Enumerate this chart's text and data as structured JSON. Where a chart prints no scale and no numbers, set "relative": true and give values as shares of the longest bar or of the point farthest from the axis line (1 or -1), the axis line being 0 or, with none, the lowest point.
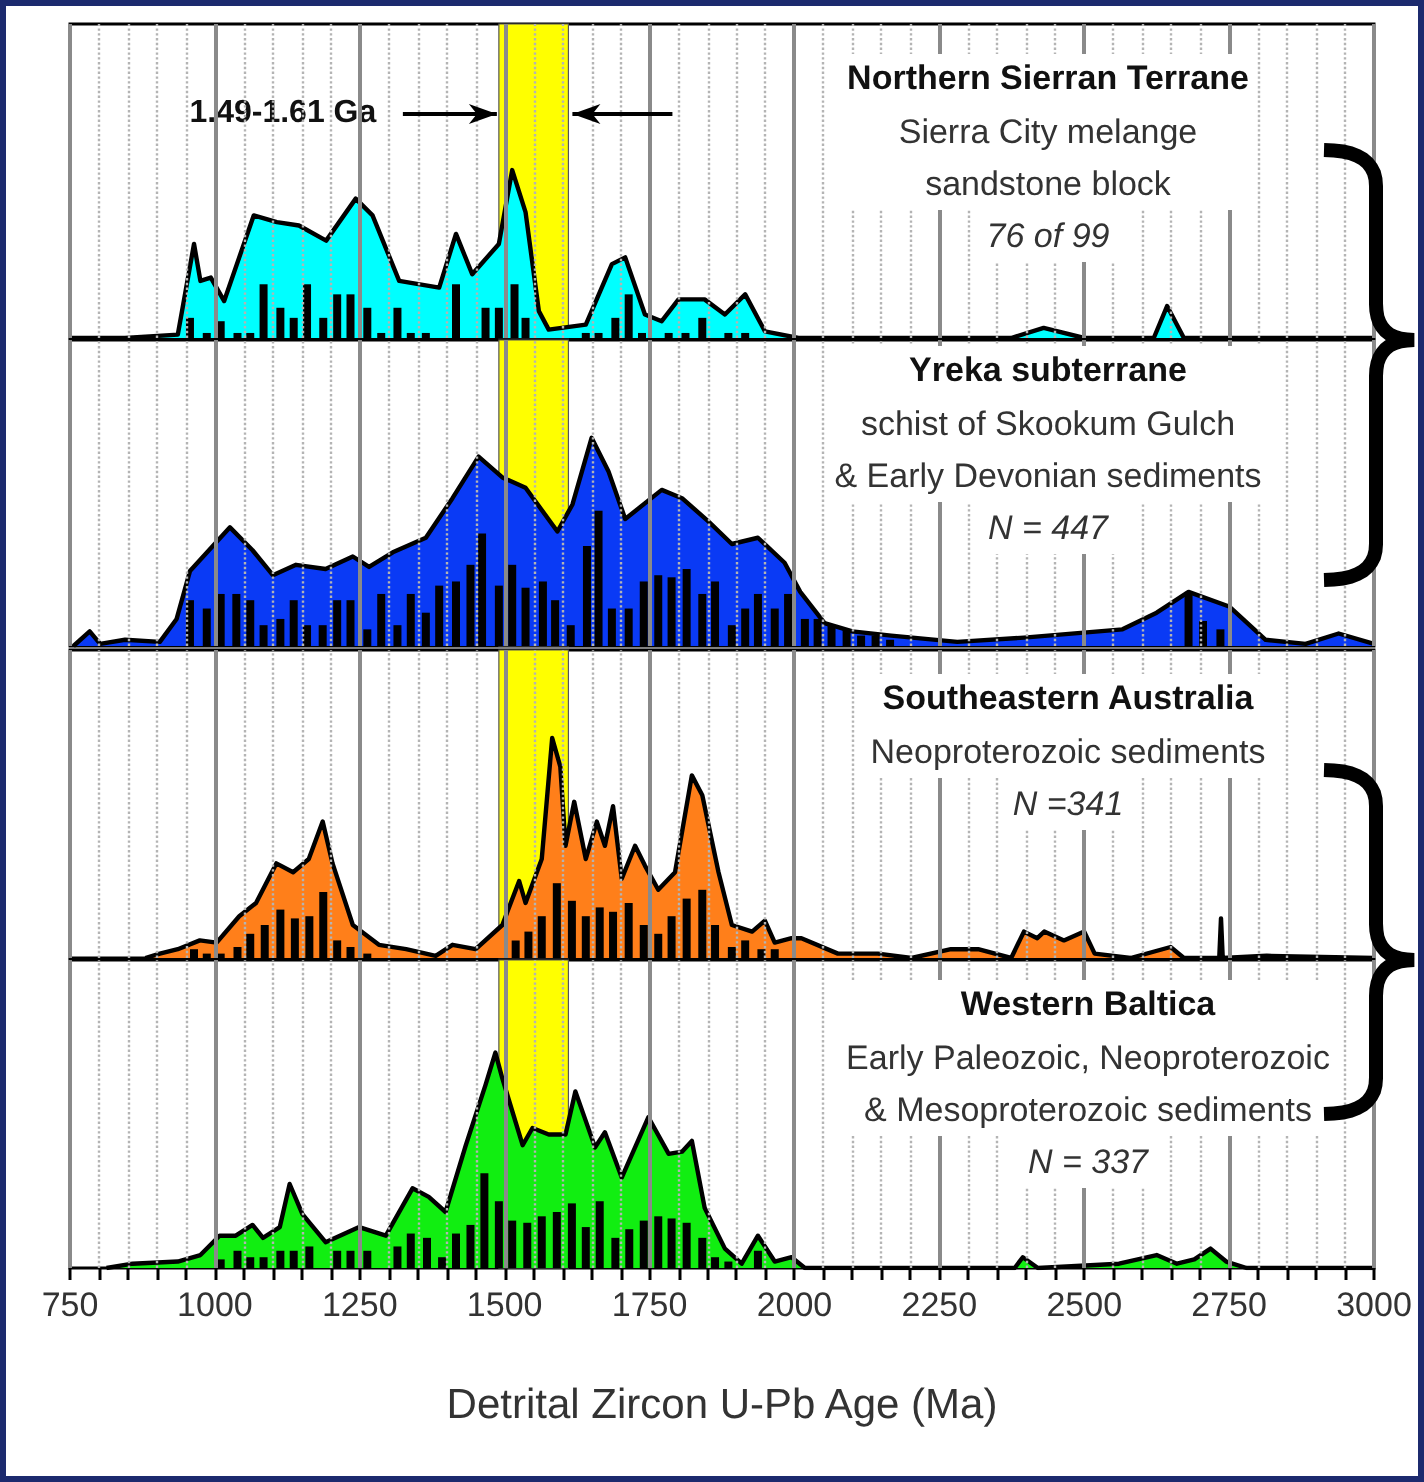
{
  "chart_data": [
    {
      "type": "area",
      "title": "Northern Sierran Terrane",
      "subtitle": "Sierra City melange\nsandstone block",
      "annotations": [
        "76 of 99"
      ],
      "relative": true,
      "grid": "x",
      "marker": "none",
      "tick_labels": false,
      "xlim": [
        750,
        3000
      ],
      "xticks": [
        750,
        {
          "value": 800,
          "label": null
        },
        {
          "value": 850,
          "label": null
        },
        {
          "value": 900,
          "label": null
        },
        {
          "value": 950,
          "label": null
        },
        1000,
        {
          "value": 1050,
          "label": null
        },
        {
          "value": 1100,
          "label": null
        },
        {
          "value": 1150,
          "label": null
        },
        {
          "value": 1200,
          "label": null
        },
        1250,
        {
          "value": 1300,
          "label": null
        },
        {
          "value": 1350,
          "label": null
        },
        {
          "value": 1400,
          "label": null
        },
        {
          "value": 1450,
          "label": null
        },
        1500,
        {
          "value": 1550,
          "label": null
        },
        {
          "value": 1600,
          "label": null
        },
        {
          "value": 1650,
          "label": null
        },
        {
          "value": 1700,
          "label": null
        },
        1750,
        {
          "value": 1800,
          "label": null
        },
        {
          "value": 1850,
          "label": null
        },
        {
          "value": 1900,
          "label": null
        },
        {
          "value": 1950,
          "label": null
        },
        2000,
        {
          "value": 2050,
          "label": null
        },
        {
          "value": 2100,
          "label": null
        },
        {
          "value": 2150,
          "label": null
        },
        {
          "value": 2200,
          "label": null
        },
        2250,
        {
          "value": 2300,
          "label": null
        },
        {
          "value": 2350,
          "label": null
        },
        {
          "value": 2400,
          "label": null
        },
        {
          "value": 2450,
          "label": null
        },
        2500,
        {
          "value": 2550,
          "label": null
        },
        {
          "value": 2600,
          "label": null
        },
        {
          "value": 2650,
          "label": null
        },
        {
          "value": 2700,
          "label": null
        },
        2750,
        {
          "value": 2800,
          "label": null
        },
        {
          "value": 2850,
          "label": null
        },
        {
          "value": 2900,
          "label": null
        },
        {
          "value": 2950,
          "label": null
        },
        3000
      ],
      "bands": [
        {
          "axis": "x",
          "from": 1490,
          "to": 1610,
          "label": "1.49-1.61 Ga",
          "color": "#ffff00"
        }
      ],
      "series": [
        {
          "color": "#00ffff",
          "x": [
            750,
            845,
            936,
            964,
            975,
            993,
            1016,
            1067,
            1107,
            1145,
            1192,
            1243,
            1272,
            1318,
            1387,
            1416,
            1444,
            1490,
            1513,
            1536,
            1559,
            1576,
            1640,
            1685,
            1708,
            1742,
            1771,
            1800,
            1845,
            1880,
            1915,
            1949,
            2007,
            2374,
            2430,
            2500,
            2620,
            2643,
            2672,
            3000
          ],
          "values": [
            0,
            0,
            0.02,
            0.56,
            0.34,
            0.36,
            0.22,
            0.73,
            0.69,
            0.67,
            0.58,
            0.83,
            0.73,
            0.34,
            0.3,
            0.62,
            0.38,
            0.56,
            1,
            0.75,
            0.16,
            0.05,
            0.08,
            0.44,
            0.48,
            0.14,
            0.1,
            0.23,
            0.23,
            0.14,
            0.26,
            0.04,
            0,
            0,
            0.06,
            0,
            0,
            0.19,
            0,
            0
          ]
        },
        {
          "type": "bar",
          "color": "#000000",
          "x": [
            957,
            986,
            1010,
            1039,
            1061,
            1084,
            1113,
            1136,
            1159,
            1187,
            1211,
            1234,
            1263,
            1287,
            1315,
            1338,
            1364,
            1416,
            1467,
            1490,
            1517,
            1536,
            1640,
            1662,
            1691,
            1714,
            1737,
            1783,
            1812,
            1841,
            1886,
            1915
          ],
          "values": [
            0.12,
            0.03,
            0.1,
            0.03,
            0.03,
            0.32,
            0.18,
            0.12,
            0.32,
            0.12,
            0.26,
            0.26,
            0.18,
            0.03,
            0.18,
            0.03,
            0.03,
            0.32,
            0.18,
            0.18,
            0.32,
            0.12,
            0.03,
            0.03,
            0.12,
            0.26,
            0.03,
            0.03,
            0.03,
            0.12,
            0.03,
            0.03
          ]
        }
      ]
    },
    {
      "type": "area",
      "title": "Yreka subterrane",
      "subtitle": "schist of Skookum Gulch\n& Early Devonian sediments",
      "annotations": [
        "N = 447"
      ],
      "relative": true,
      "grid": "x",
      "marker": "none",
      "tick_labels": false,
      "xlim": [
        750,
        3000
      ],
      "xticks": [
        750,
        {
          "value": 800,
          "label": null
        },
        {
          "value": 850,
          "label": null
        },
        {
          "value": 900,
          "label": null
        },
        {
          "value": 950,
          "label": null
        },
        1000,
        {
          "value": 1050,
          "label": null
        },
        {
          "value": 1100,
          "label": null
        },
        {
          "value": 1150,
          "label": null
        },
        {
          "value": 1200,
          "label": null
        },
        1250,
        {
          "value": 1300,
          "label": null
        },
        {
          "value": 1350,
          "label": null
        },
        {
          "value": 1400,
          "label": null
        },
        {
          "value": 1450,
          "label": null
        },
        1500,
        {
          "value": 1550,
          "label": null
        },
        {
          "value": 1600,
          "label": null
        },
        {
          "value": 1650,
          "label": null
        },
        {
          "value": 1700,
          "label": null
        },
        1750,
        {
          "value": 1800,
          "label": null
        },
        {
          "value": 1850,
          "label": null
        },
        {
          "value": 1900,
          "label": null
        },
        {
          "value": 1950,
          "label": null
        },
        2000,
        {
          "value": 2050,
          "label": null
        },
        {
          "value": 2100,
          "label": null
        },
        {
          "value": 2150,
          "label": null
        },
        {
          "value": 2200,
          "label": null
        },
        2250,
        {
          "value": 2300,
          "label": null
        },
        {
          "value": 2350,
          "label": null
        },
        {
          "value": 2400,
          "label": null
        },
        {
          "value": 2450,
          "label": null
        },
        2500,
        {
          "value": 2550,
          "label": null
        },
        {
          "value": 2600,
          "label": null
        },
        {
          "value": 2650,
          "label": null
        },
        {
          "value": 2700,
          "label": null
        },
        2750,
        {
          "value": 2800,
          "label": null
        },
        {
          "value": 2850,
          "label": null
        },
        {
          "value": 2900,
          "label": null
        },
        {
          "value": 2950,
          "label": null
        },
        3000
      ],
      "bands": [
        {
          "axis": "x",
          "from": 1490,
          "to": 1610,
          "color": "#ffff00"
        }
      ],
      "series": [
        {
          "color": "#0a3af5",
          "x": [
            756,
            784,
            802,
            845,
            905,
            934,
            957,
            1026,
            1065,
            1100,
            1140,
            1191,
            1238,
            1266,
            1307,
            1364,
            1410,
            1455,
            1496,
            1536,
            1591,
            1617,
            1650,
            1679,
            1708,
            1771,
            1806,
            1851,
            1892,
            1937,
            1983,
            2010,
            2052,
            2100,
            2167,
            2281,
            2396,
            2566,
            2625,
            2680,
            2750,
            2813,
            2882,
            2939,
            3000
          ],
          "values": [
            0,
            0.07,
            0.01,
            0.03,
            0.02,
            0.13,
            0.36,
            0.57,
            0.46,
            0.34,
            0.39,
            0.37,
            0.43,
            0.38,
            0.45,
            0.52,
            0.71,
            0.91,
            0.81,
            0.76,
            0.55,
            0.68,
            1,
            0.84,
            0.61,
            0.75,
            0.71,
            0.6,
            0.49,
            0.52,
            0.4,
            0.26,
            0.11,
            0.07,
            0.05,
            0.02,
            0.04,
            0.08,
            0.16,
            0.26,
            0.19,
            0.03,
            0.01,
            0.06,
            0.01
          ]
        },
        {
          "type": "bar",
          "color": "#000000",
          "x": [
            957,
            986,
            1010,
            1037,
            1061,
            1084,
            1113,
            1136,
            1159,
            1186,
            1211,
            1234,
            1263,
            1287,
            1315,
            1338,
            1364,
            1387,
            1416,
            1441,
            1461,
            1490,
            1513,
            1536,
            1566,
            1587,
            1614,
            1642,
            1662,
            1685,
            1714,
            1740,
            1765,
            1788,
            1814,
            1841,
            1863,
            1892,
            1915,
            1937,
            1966,
            1989,
            2018,
            2040,
            2064,
            2090,
            2115,
            2140,
            2165,
            2680,
            2705,
            2735
          ],
          "values": [
            0.22,
            0.18,
            0.25,
            0.25,
            0.22,
            0.1,
            0.13,
            0.22,
            0.1,
            0.1,
            0.22,
            0.22,
            0.08,
            0.25,
            0.1,
            0.25,
            0.16,
            0.29,
            0.31,
            0.39,
            0.54,
            0.29,
            0.39,
            0.28,
            0.31,
            0.22,
            0.1,
            0.48,
            0.65,
            0.18,
            0.18,
            0.31,
            0.34,
            0.33,
            0.37,
            0.25,
            0.31,
            0.1,
            0.18,
            0.25,
            0.18,
            0.25,
            0.13,
            0.13,
            0.1,
            0.08,
            0.05,
            0.05,
            0.03,
            0.26,
            0.12,
            0.08
          ]
        }
      ]
    },
    {
      "type": "area",
      "title": "Southeastern Australia",
      "subtitle": "Neoproterozoic sediments",
      "annotations": [
        "N =341"
      ],
      "relative": true,
      "grid": "x",
      "marker": "none",
      "tick_labels": false,
      "xlim": [
        750,
        3000
      ],
      "xticks": [
        750,
        {
          "value": 800,
          "label": null
        },
        {
          "value": 850,
          "label": null
        },
        {
          "value": 900,
          "label": null
        },
        {
          "value": 950,
          "label": null
        },
        1000,
        {
          "value": 1050,
          "label": null
        },
        {
          "value": 1100,
          "label": null
        },
        {
          "value": 1150,
          "label": null
        },
        {
          "value": 1200,
          "label": null
        },
        1250,
        {
          "value": 1300,
          "label": null
        },
        {
          "value": 1350,
          "label": null
        },
        {
          "value": 1400,
          "label": null
        },
        {
          "value": 1450,
          "label": null
        },
        1500,
        {
          "value": 1550,
          "label": null
        },
        {
          "value": 1600,
          "label": null
        },
        {
          "value": 1650,
          "label": null
        },
        {
          "value": 1700,
          "label": null
        },
        1750,
        {
          "value": 1800,
          "label": null
        },
        {
          "value": 1850,
          "label": null
        },
        {
          "value": 1900,
          "label": null
        },
        {
          "value": 1950,
          "label": null
        },
        2000,
        {
          "value": 2050,
          "label": null
        },
        {
          "value": 2100,
          "label": null
        },
        {
          "value": 2150,
          "label": null
        },
        {
          "value": 2200,
          "label": null
        },
        2250,
        {
          "value": 2300,
          "label": null
        },
        {
          "value": 2350,
          "label": null
        },
        {
          "value": 2400,
          "label": null
        },
        {
          "value": 2450,
          "label": null
        },
        2500,
        {
          "value": 2550,
          "label": null
        },
        {
          "value": 2600,
          "label": null
        },
        {
          "value": 2650,
          "label": null
        },
        {
          "value": 2700,
          "label": null
        },
        2750,
        {
          "value": 2800,
          "label": null
        },
        {
          "value": 2850,
          "label": null
        },
        {
          "value": 2900,
          "label": null
        },
        {
          "value": 2950,
          "label": null
        },
        3000
      ],
      "bands": [
        {
          "axis": "x",
          "from": 1490,
          "to": 1610,
          "color": "#ffff00"
        }
      ],
      "series": [
        {
          "color": "#ff7f1a",
          "x": [
            880,
            905,
            936,
            974,
            1003,
            1042,
            1071,
            1106,
            1135,
            1162,
            1186,
            1203,
            1238,
            1283,
            1330,
            1381,
            1410,
            1450,
            1496,
            1525,
            1536,
            1564,
            1582,
            1596,
            1605,
            1620,
            1640,
            1659,
            1673,
            1687,
            1702,
            1725,
            1742,
            1765,
            1794,
            1823,
            1841,
            1869,
            1892,
            1927,
            1949,
            1966,
            1995,
            2012,
            2075,
            2144,
            2202,
            2270,
            2317,
            2374,
            2396,
            2419,
            2431,
            2465,
            2500,
            2518,
            2580,
            2649,
            2672,
            2733,
            2736,
            2739,
            2815,
            3000
          ],
          "values": [
            0,
            0.02,
            0.04,
            0.08,
            0.07,
            0.19,
            0.25,
            0.43,
            0.39,
            0.45,
            0.62,
            0.43,
            0.15,
            0.06,
            0.04,
            0.01,
            0.06,
            0.04,
            0.15,
            0.35,
            0.25,
            0.45,
            1,
            0.87,
            0.51,
            0.71,
            0.45,
            0.62,
            0.51,
            0.69,
            0.36,
            0.51,
            0.42,
            0.31,
            0.39,
            0.83,
            0.74,
            0.39,
            0.15,
            0.12,
            0.17,
            0.07,
            0.09,
            0.09,
            0.02,
            0.02,
            0,
            0.04,
            0.04,
            0,
            0.12,
            0.09,
            0.12,
            0.08,
            0.12,
            0.02,
            0,
            0.05,
            0,
            0,
            0.18,
            0,
            0.01,
            0
          ]
        },
        {
          "type": "bar",
          "color": "#000000",
          "x": [
            964,
            986,
            1010,
            1039,
            1061,
            1086,
            1113,
            1138,
            1163,
            1187,
            1211,
            1234,
            1263,
            1519,
            1541,
            1564,
            1590,
            1616,
            1640,
            1664,
            1687,
            1714,
            1740,
            1765,
            1788,
            1814,
            1841,
            1863,
            1892,
            1915,
            1943,
            1966
          ],
          "values": [
            0.04,
            0.02,
            0.02,
            0.05,
            0.11,
            0.15,
            0.22,
            0.18,
            0.19,
            0.3,
            0.08,
            0.05,
            0.02,
            0.08,
            0.12,
            0.19,
            0.34,
            0.26,
            0.19,
            0.23,
            0.21,
            0.25,
            0.15,
            0.11,
            0.19,
            0.27,
            0.31,
            0.15,
            0.05,
            0.08,
            0.04,
            0.04
          ]
        }
      ]
    },
    {
      "type": "area",
      "title": "Western Baltica",
      "subtitle": "Early Paleozoic, Neoproterozoic\n& Mesoproterozoic sediments",
      "annotations": [
        "N = 337"
      ],
      "xlabel": "Detrital Zircon U-Pb Age (Ma)",
      "relative": true,
      "grid": "x",
      "marker": "none",
      "tick_labels": "x",
      "xlim": [
        750,
        3000
      ],
      "xticks": [
        750,
        {
          "value": 800,
          "label": null
        },
        {
          "value": 850,
          "label": null
        },
        {
          "value": 900,
          "label": null
        },
        {
          "value": 950,
          "label": null
        },
        1000,
        {
          "value": 1050,
          "label": null
        },
        {
          "value": 1100,
          "label": null
        },
        {
          "value": 1150,
          "label": null
        },
        {
          "value": 1200,
          "label": null
        },
        1250,
        {
          "value": 1300,
          "label": null
        },
        {
          "value": 1350,
          "label": null
        },
        {
          "value": 1400,
          "label": null
        },
        {
          "value": 1450,
          "label": null
        },
        1500,
        {
          "value": 1550,
          "label": null
        },
        {
          "value": 1600,
          "label": null
        },
        {
          "value": 1650,
          "label": null
        },
        {
          "value": 1700,
          "label": null
        },
        1750,
        {
          "value": 1800,
          "label": null
        },
        {
          "value": 1850,
          "label": null
        },
        {
          "value": 1900,
          "label": null
        },
        {
          "value": 1950,
          "label": null
        },
        2000,
        {
          "value": 2050,
          "label": null
        },
        {
          "value": 2100,
          "label": null
        },
        {
          "value": 2150,
          "label": null
        },
        {
          "value": 2200,
          "label": null
        },
        2250,
        {
          "value": 2300,
          "label": null
        },
        {
          "value": 2350,
          "label": null
        },
        {
          "value": 2400,
          "label": null
        },
        {
          "value": 2450,
          "label": null
        },
        2500,
        {
          "value": 2550,
          "label": null
        },
        {
          "value": 2600,
          "label": null
        },
        {
          "value": 2650,
          "label": null
        },
        {
          "value": 2700,
          "label": null
        },
        2750,
        {
          "value": 2800,
          "label": null
        },
        {
          "value": 2850,
          "label": null
        },
        {
          "value": 2900,
          "label": null
        },
        {
          "value": 2950,
          "label": null
        },
        3000
      ],
      "bands": [
        {
          "axis": "x",
          "from": 1490,
          "to": 1610,
          "color": "#ffff00"
        }
      ],
      "series": [
        {
          "color": "#11ee11",
          "x": [
            813,
            858,
            936,
            975,
            1008,
            1036,
            1065,
            1083,
            1112,
            1129,
            1151,
            1191,
            1249,
            1295,
            1341,
            1369,
            1398,
            1433,
            1467,
            1484,
            1496,
            1531,
            1548,
            1576,
            1605,
            1622,
            1656,
            1673,
            1702,
            1748,
            1783,
            1806,
            1823,
            1845,
            1880,
            1909,
            1937,
            1966,
            1995,
            2018,
            2380,
            2394,
            2420,
            2560,
            2625,
            2660,
            2690,
            2718,
            2745,
            2780,
            3000
          ],
          "values": [
            0,
            0.02,
            0.03,
            0.06,
            0.15,
            0.15,
            0.2,
            0.14,
            0.19,
            0.39,
            0.25,
            0.12,
            0.19,
            0.15,
            0.37,
            0.33,
            0.26,
            0.57,
            0.85,
            1,
            0.88,
            0.57,
            0.65,
            0.62,
            0.62,
            0.82,
            0.56,
            0.63,
            0.42,
            0.7,
            0.53,
            0.54,
            0.59,
            0.28,
            0.09,
            0.02,
            0.15,
            0.03,
            0.05,
            0,
            0,
            0.05,
            0,
            0.02,
            0.06,
            0.02,
            0.04,
            0.09,
            0.03,
            0,
            0
          ]
        },
        {
          "type": "bar",
          "color": "#000000",
          "x": [
            1010,
            1039,
            1061,
            1084,
            1113,
            1136,
            1163,
            1211,
            1234,
            1263,
            1315,
            1338,
            1366,
            1392,
            1416,
            1441,
            1465,
            1490,
            1513,
            1539,
            1564,
            1590,
            1616,
            1640,
            1664,
            1691,
            1715,
            1740,
            1765,
            1788,
            1814,
            1841,
            1863,
            1886,
            1937
          ],
          "values": [
            0.04,
            0.08,
            0.05,
            0.05,
            0.08,
            0.08,
            0.1,
            0.08,
            0.08,
            0.08,
            0.1,
            0.16,
            0.14,
            0.05,
            0.16,
            0.2,
            0.44,
            0.31,
            0.22,
            0.21,
            0.24,
            0.26,
            0.3,
            0.19,
            0.31,
            0.14,
            0.18,
            0.22,
            0.24,
            0.23,
            0.21,
            0.14,
            0.05,
            0.03,
            0.08
          ]
        }
      ]
    }
  ]
}
